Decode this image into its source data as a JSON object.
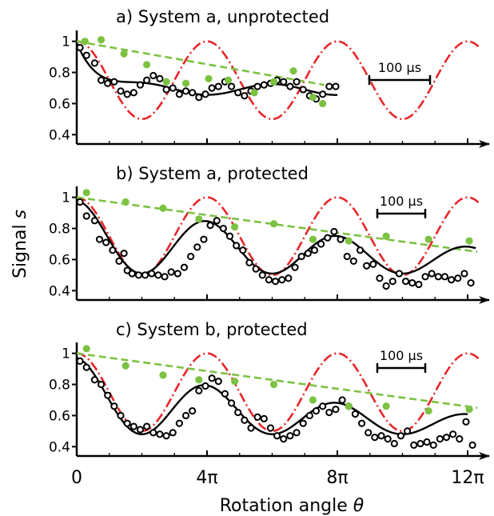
{
  "figure": {
    "ylabel_main": "Signal ",
    "ylabel_var": "s",
    "xlabel_main": "Rotation angle ",
    "xlabel_var": "θ",
    "x_tick_labels": [
      "0",
      "4π",
      "8π",
      "12π"
    ]
  },
  "colors": {
    "data_open": "#000000",
    "fit": "#000000",
    "theory": "#e8262b",
    "decay": "#7cc242"
  },
  "chart_data": [
    {
      "type": "line",
      "title": "a) System a, unprotected",
      "scale_bar_label": "100 µs",
      "xlabel": "",
      "ylabel": "",
      "xlim_pi": [
        0,
        12.5
      ],
      "ylim": [
        0.34,
        1.06
      ],
      "yticks": [
        0.4,
        0.6,
        0.8,
        1.0
      ],
      "ytick_labels": [
        "0.4",
        "0.6",
        "0.8",
        "1"
      ],
      "ideal_theta_max_pi": 12.4,
      "fit_decay": {
        "offset": 0.69,
        "amp": 0.3,
        "tau_pi": 0.65,
        "theta_max_pi": 8.0
      },
      "series_open": [
        [
          0.1,
          0.96
        ],
        [
          0.3,
          0.91
        ],
        [
          0.55,
          0.86
        ],
        [
          0.75,
          0.75
        ],
        [
          0.95,
          0.73
        ],
        [
          1.15,
          0.74
        ],
        [
          1.35,
          0.68
        ],
        [
          1.55,
          0.66
        ],
        [
          1.75,
          0.67
        ],
        [
          1.95,
          0.72
        ],
        [
          2.15,
          0.75
        ],
        [
          2.35,
          0.78
        ],
        [
          2.55,
          0.76
        ],
        [
          2.75,
          0.69
        ],
        [
          2.95,
          0.7
        ],
        [
          3.15,
          0.66
        ],
        [
          3.35,
          0.68
        ],
        [
          3.55,
          0.67
        ],
        [
          3.75,
          0.64
        ],
        [
          3.95,
          0.66
        ],
        [
          4.15,
          0.7
        ],
        [
          4.35,
          0.71
        ],
        [
          4.55,
          0.74
        ],
        [
          4.75,
          0.71
        ],
        [
          4.95,
          0.67
        ],
        [
          5.15,
          0.65
        ],
        [
          5.35,
          0.68
        ],
        [
          5.55,
          0.71
        ],
        [
          5.75,
          0.72
        ],
        [
          5.95,
          0.73
        ],
        [
          6.15,
          0.75
        ],
        [
          6.35,
          0.74
        ],
        [
          6.55,
          0.71
        ],
        [
          6.75,
          0.74
        ],
        [
          6.95,
          0.69
        ],
        [
          7.15,
          0.65
        ],
        [
          7.35,
          0.63
        ],
        [
          7.55,
          0.66
        ],
        [
          7.75,
          0.71
        ],
        [
          7.95,
          0.71
        ]
      ],
      "series_filled": [
        [
          0.25,
          1.0
        ],
        [
          0.75,
          1.01
        ],
        [
          1.45,
          0.92
        ],
        [
          2.15,
          0.85
        ],
        [
          2.75,
          0.74
        ],
        [
          3.35,
          0.73
        ],
        [
          4.05,
          0.76
        ],
        [
          4.65,
          0.75
        ],
        [
          5.45,
          0.67
        ],
        [
          6.05,
          0.74
        ],
        [
          6.65,
          0.81
        ],
        [
          7.25,
          0.64
        ],
        [
          7.55,
          0.6
        ]
      ],
      "decay_line": {
        "x_pi": [
          0.0,
          7.6
        ],
        "y": [
          1.0,
          0.72
        ]
      }
    },
    {
      "type": "line",
      "title": "b) System a, protected",
      "scale_bar_label": "100 µs",
      "xlabel": "",
      "ylabel": "",
      "xlim_pi": [
        0,
        12.5
      ],
      "ylim": [
        0.34,
        1.06
      ],
      "yticks": [
        0.4,
        0.6,
        0.8,
        1.0
      ],
      "ytick_labels": [
        "0.4",
        "0.6",
        "0.8",
        "1"
      ],
      "ideal_theta_max_pi": 12.4,
      "fit_osc": {
        "offset": 0.51,
        "amp": 0.47,
        "decay_pi": 12.0,
        "theta_max_pi": 12.25
      },
      "series_open": [
        [
          0.1,
          0.97
        ],
        [
          0.3,
          0.88
        ],
        [
          0.55,
          0.85
        ],
        [
          0.7,
          0.73
        ],
        [
          0.9,
          0.71
        ],
        [
          1.1,
          0.66
        ],
        [
          1.3,
          0.59
        ],
        [
          1.45,
          0.64
        ],
        [
          1.55,
          0.53
        ],
        [
          1.7,
          0.51
        ],
        [
          1.9,
          0.5
        ],
        [
          2.1,
          0.5
        ],
        [
          2.3,
          0.51
        ],
        [
          2.5,
          0.5
        ],
        [
          2.7,
          0.49
        ],
        [
          2.9,
          0.52
        ],
        [
          3.1,
          0.51
        ],
        [
          3.3,
          0.55
        ],
        [
          3.5,
          0.62
        ],
        [
          3.7,
          0.68
        ],
        [
          3.9,
          0.73
        ],
        [
          4.1,
          0.82
        ],
        [
          4.3,
          0.85
        ],
        [
          4.5,
          0.8
        ],
        [
          4.7,
          0.75
        ],
        [
          4.9,
          0.69
        ],
        [
          5.1,
          0.66
        ],
        [
          5.3,
          0.58
        ],
        [
          5.5,
          0.54
        ],
        [
          5.7,
          0.5
        ],
        [
          5.9,
          0.47
        ],
        [
          6.1,
          0.46
        ],
        [
          6.3,
          0.47
        ],
        [
          6.5,
          0.48
        ],
        [
          6.7,
          0.55
        ],
        [
          6.9,
          0.62
        ],
        [
          7.1,
          0.64
        ],
        [
          7.3,
          0.66
        ],
        [
          7.5,
          0.7
        ],
        [
          7.7,
          0.74
        ],
        [
          7.9,
          0.78
        ],
        [
          8.1,
          0.73
        ],
        [
          8.3,
          0.62
        ],
        [
          8.5,
          0.59
        ],
        [
          8.7,
          0.66
        ],
        [
          8.9,
          0.56
        ],
        [
          9.1,
          0.57
        ],
        [
          9.3,
          0.48
        ],
        [
          9.5,
          0.43
        ],
        [
          9.7,
          0.46
        ],
        [
          9.9,
          0.51
        ],
        [
          10.1,
          0.46
        ],
        [
          10.3,
          0.45
        ],
        [
          10.5,
          0.44
        ],
        [
          10.7,
          0.49
        ],
        [
          10.9,
          0.51
        ],
        [
          11.1,
          0.49
        ],
        [
          11.3,
          0.49
        ],
        [
          11.5,
          0.47
        ],
        [
          11.7,
          0.48
        ],
        [
          11.9,
          0.51
        ],
        [
          12.1,
          0.45
        ]
      ],
      "series_filled": [
        [
          0.3,
          1.03
        ],
        [
          1.5,
          0.97
        ],
        [
          2.65,
          0.93
        ],
        [
          3.75,
          0.86
        ],
        [
          4.85,
          0.81
        ],
        [
          6.05,
          0.83
        ],
        [
          7.25,
          0.73
        ],
        [
          8.35,
          0.72
        ],
        [
          9.5,
          0.75
        ],
        [
          10.8,
          0.73
        ],
        [
          12.05,
          0.72
        ]
      ],
      "decay_line": {
        "x_pi": [
          0.0,
          12.3
        ],
        "y": [
          1.0,
          0.65
        ]
      }
    },
    {
      "type": "line",
      "title": "c) System b, protected",
      "scale_bar_label": "100 µs",
      "xlabel": "",
      "ylabel": "",
      "xlim_pi": [
        0,
        12.5
      ],
      "ylim": [
        0.34,
        1.06
      ],
      "yticks": [
        0.4,
        0.6,
        0.8,
        1.0
      ],
      "ytick_labels": [
        "0.4",
        "0.6",
        "0.8",
        "1"
      ],
      "ideal_theta_max_pi": 12.4,
      "fit_osc": {
        "offset": 0.48,
        "amp": 0.49,
        "decay_pi": 9.0,
        "theta_max_pi": 12.0
      },
      "series_open": [
        [
          0.1,
          0.95
        ],
        [
          0.3,
          0.91
        ],
        [
          0.55,
          0.83
        ],
        [
          0.75,
          0.8
        ],
        [
          0.95,
          0.73
        ],
        [
          1.15,
          0.66
        ],
        [
          1.35,
          0.6
        ],
        [
          1.55,
          0.55
        ],
        [
          1.75,
          0.53
        ],
        [
          1.95,
          0.51
        ],
        [
          2.15,
          0.53
        ],
        [
          2.35,
          0.49
        ],
        [
          2.55,
          0.48
        ],
        [
          2.75,
          0.47
        ],
        [
          2.95,
          0.49
        ],
        [
          3.15,
          0.55
        ],
        [
          3.35,
          0.6
        ],
        [
          3.55,
          0.63
        ],
        [
          3.75,
          0.76
        ],
        [
          3.95,
          0.79
        ],
        [
          4.15,
          0.84
        ],
        [
          4.35,
          0.82
        ],
        [
          4.55,
          0.74
        ],
        [
          4.75,
          0.68
        ],
        [
          4.95,
          0.62
        ],
        [
          5.15,
          0.57
        ],
        [
          5.35,
          0.52
        ],
        [
          5.55,
          0.59
        ],
        [
          5.75,
          0.58
        ],
        [
          5.95,
          0.52
        ],
        [
          6.15,
          0.47
        ],
        [
          6.35,
          0.45
        ],
        [
          6.55,
          0.47
        ],
        [
          6.75,
          0.49
        ],
        [
          6.95,
          0.55
        ],
        [
          7.15,
          0.6
        ],
        [
          7.35,
          0.63
        ],
        [
          7.55,
          0.66
        ],
        [
          7.75,
          0.62
        ],
        [
          7.95,
          0.64
        ],
        [
          8.15,
          0.7
        ],
        [
          8.35,
          0.66
        ],
        [
          8.55,
          0.61
        ],
        [
          8.75,
          0.55
        ],
        [
          8.95,
          0.49
        ],
        [
          9.15,
          0.46
        ],
        [
          9.35,
          0.47
        ],
        [
          9.55,
          0.45
        ],
        [
          9.75,
          0.42
        ],
        [
          9.95,
          0.47
        ],
        [
          10.15,
          0.5
        ],
        [
          10.35,
          0.41
        ],
        [
          10.55,
          0.42
        ],
        [
          10.75,
          0.43
        ],
        [
          10.95,
          0.41
        ],
        [
          11.15,
          0.45
        ],
        [
          11.35,
          0.46
        ],
        [
          11.55,
          0.48
        ],
        [
          11.75,
          0.45
        ],
        [
          11.95,
          0.56
        ],
        [
          12.15,
          0.41
        ]
      ],
      "series_filled": [
        [
          0.3,
          1.03
        ],
        [
          1.5,
          0.92
        ],
        [
          2.65,
          0.86
        ],
        [
          3.75,
          0.83
        ],
        [
          4.85,
          0.82
        ],
        [
          6.05,
          0.8
        ],
        [
          7.25,
          0.7
        ],
        [
          8.35,
          0.66
        ],
        [
          9.5,
          0.66
        ],
        [
          10.8,
          0.63
        ],
        [
          12.05,
          0.64
        ]
      ],
      "decay_line": {
        "x_pi": [
          0.0,
          12.3
        ],
        "y": [
          1.0,
          0.65
        ]
      }
    }
  ]
}
